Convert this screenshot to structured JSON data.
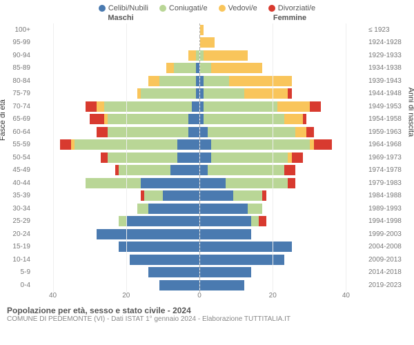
{
  "chart": {
    "type": "population-pyramid",
    "legend": [
      {
        "label": "Celibi/Nubili",
        "color": "#4a7ab0"
      },
      {
        "label": "Coniugati/e",
        "color": "#b9d696"
      },
      {
        "label": "Vedovi/e",
        "color": "#f9c55b"
      },
      {
        "label": "Divorziati/e",
        "color": "#d83a2f"
      }
    ],
    "header_male": "Maschi",
    "header_female": "Femmine",
    "ylabel_left": "Fasce di età",
    "ylabel_right": "Anni di nascita",
    "xlim": 45,
    "xticks": [
      40,
      20,
      0,
      20,
      40
    ],
    "age_groups": [
      {
        "age": "100+",
        "birth": "≤ 1923",
        "m": [
          0,
          0,
          0,
          0
        ],
        "f": [
          0,
          0,
          1,
          0
        ]
      },
      {
        "age": "95-99",
        "birth": "1924-1928",
        "m": [
          0,
          0,
          0,
          0
        ],
        "f": [
          0,
          0,
          4,
          0
        ]
      },
      {
        "age": "90-94",
        "birth": "1929-1933",
        "m": [
          0,
          1,
          2,
          0
        ],
        "f": [
          0,
          1,
          12,
          0
        ]
      },
      {
        "age": "85-89",
        "birth": "1934-1938",
        "m": [
          1,
          6,
          2,
          0
        ],
        "f": [
          0,
          3,
          14,
          0
        ]
      },
      {
        "age": "80-84",
        "birth": "1939-1943",
        "m": [
          1,
          10,
          3,
          0
        ],
        "f": [
          1,
          7,
          17,
          0
        ]
      },
      {
        "age": "75-79",
        "birth": "1944-1948",
        "m": [
          1,
          15,
          1,
          0
        ],
        "f": [
          1,
          11,
          12,
          1
        ]
      },
      {
        "age": "70-74",
        "birth": "1949-1953",
        "m": [
          2,
          24,
          2,
          3
        ],
        "f": [
          1,
          20,
          9,
          3
        ]
      },
      {
        "age": "65-69",
        "birth": "1954-1958",
        "m": [
          3,
          22,
          1,
          4
        ],
        "f": [
          1,
          22,
          5,
          1
        ]
      },
      {
        "age": "60-64",
        "birth": "1959-1963",
        "m": [
          3,
          22,
          0,
          3
        ],
        "f": [
          2,
          24,
          3,
          2
        ]
      },
      {
        "age": "55-59",
        "birth": "1964-1968",
        "m": [
          6,
          28,
          1,
          3
        ],
        "f": [
          3,
          27,
          1,
          5
        ]
      },
      {
        "age": "50-54",
        "birth": "1969-1973",
        "m": [
          6,
          19,
          0,
          2
        ],
        "f": [
          3,
          21,
          1,
          3
        ]
      },
      {
        "age": "45-49",
        "birth": "1974-1978",
        "m": [
          8,
          14,
          0,
          1
        ],
        "f": [
          2,
          21,
          0,
          3
        ]
      },
      {
        "age": "40-44",
        "birth": "1979-1983",
        "m": [
          16,
          15,
          0,
          0
        ],
        "f": [
          7,
          17,
          0,
          2
        ]
      },
      {
        "age": "35-39",
        "birth": "1984-1988",
        "m": [
          10,
          5,
          0,
          1
        ],
        "f": [
          9,
          8,
          0,
          1
        ]
      },
      {
        "age": "30-34",
        "birth": "1989-1993",
        "m": [
          14,
          3,
          0,
          0
        ],
        "f": [
          13,
          4,
          0,
          0
        ]
      },
      {
        "age": "25-29",
        "birth": "1994-1998",
        "m": [
          20,
          2,
          0,
          0
        ],
        "f": [
          14,
          2,
          0,
          2
        ]
      },
      {
        "age": "20-24",
        "birth": "1999-2003",
        "m": [
          28,
          0,
          0,
          0
        ],
        "f": [
          14,
          0,
          0,
          0
        ]
      },
      {
        "age": "15-19",
        "birth": "2004-2008",
        "m": [
          22,
          0,
          0,
          0
        ],
        "f": [
          25,
          0,
          0,
          0
        ]
      },
      {
        "age": "10-14",
        "birth": "2009-2013",
        "m": [
          19,
          0,
          0,
          0
        ],
        "f": [
          23,
          0,
          0,
          0
        ]
      },
      {
        "age": "5-9",
        "birth": "2014-2018",
        "m": [
          14,
          0,
          0,
          0
        ],
        "f": [
          14,
          0,
          0,
          0
        ]
      },
      {
        "age": "0-4",
        "birth": "2019-2023",
        "m": [
          11,
          0,
          0,
          0
        ],
        "f": [
          12,
          0,
          0,
          0
        ]
      }
    ],
    "title": "Popolazione per età, sesso e stato civile - 2024",
    "subtitle": "COMUNE DI PEDEMONTE (VI) - Dati ISTAT 1° gennaio 2024 - Elaborazione TUTTITALIA.IT",
    "background_color": "#ffffff",
    "grid_color": "#eeeeee"
  }
}
